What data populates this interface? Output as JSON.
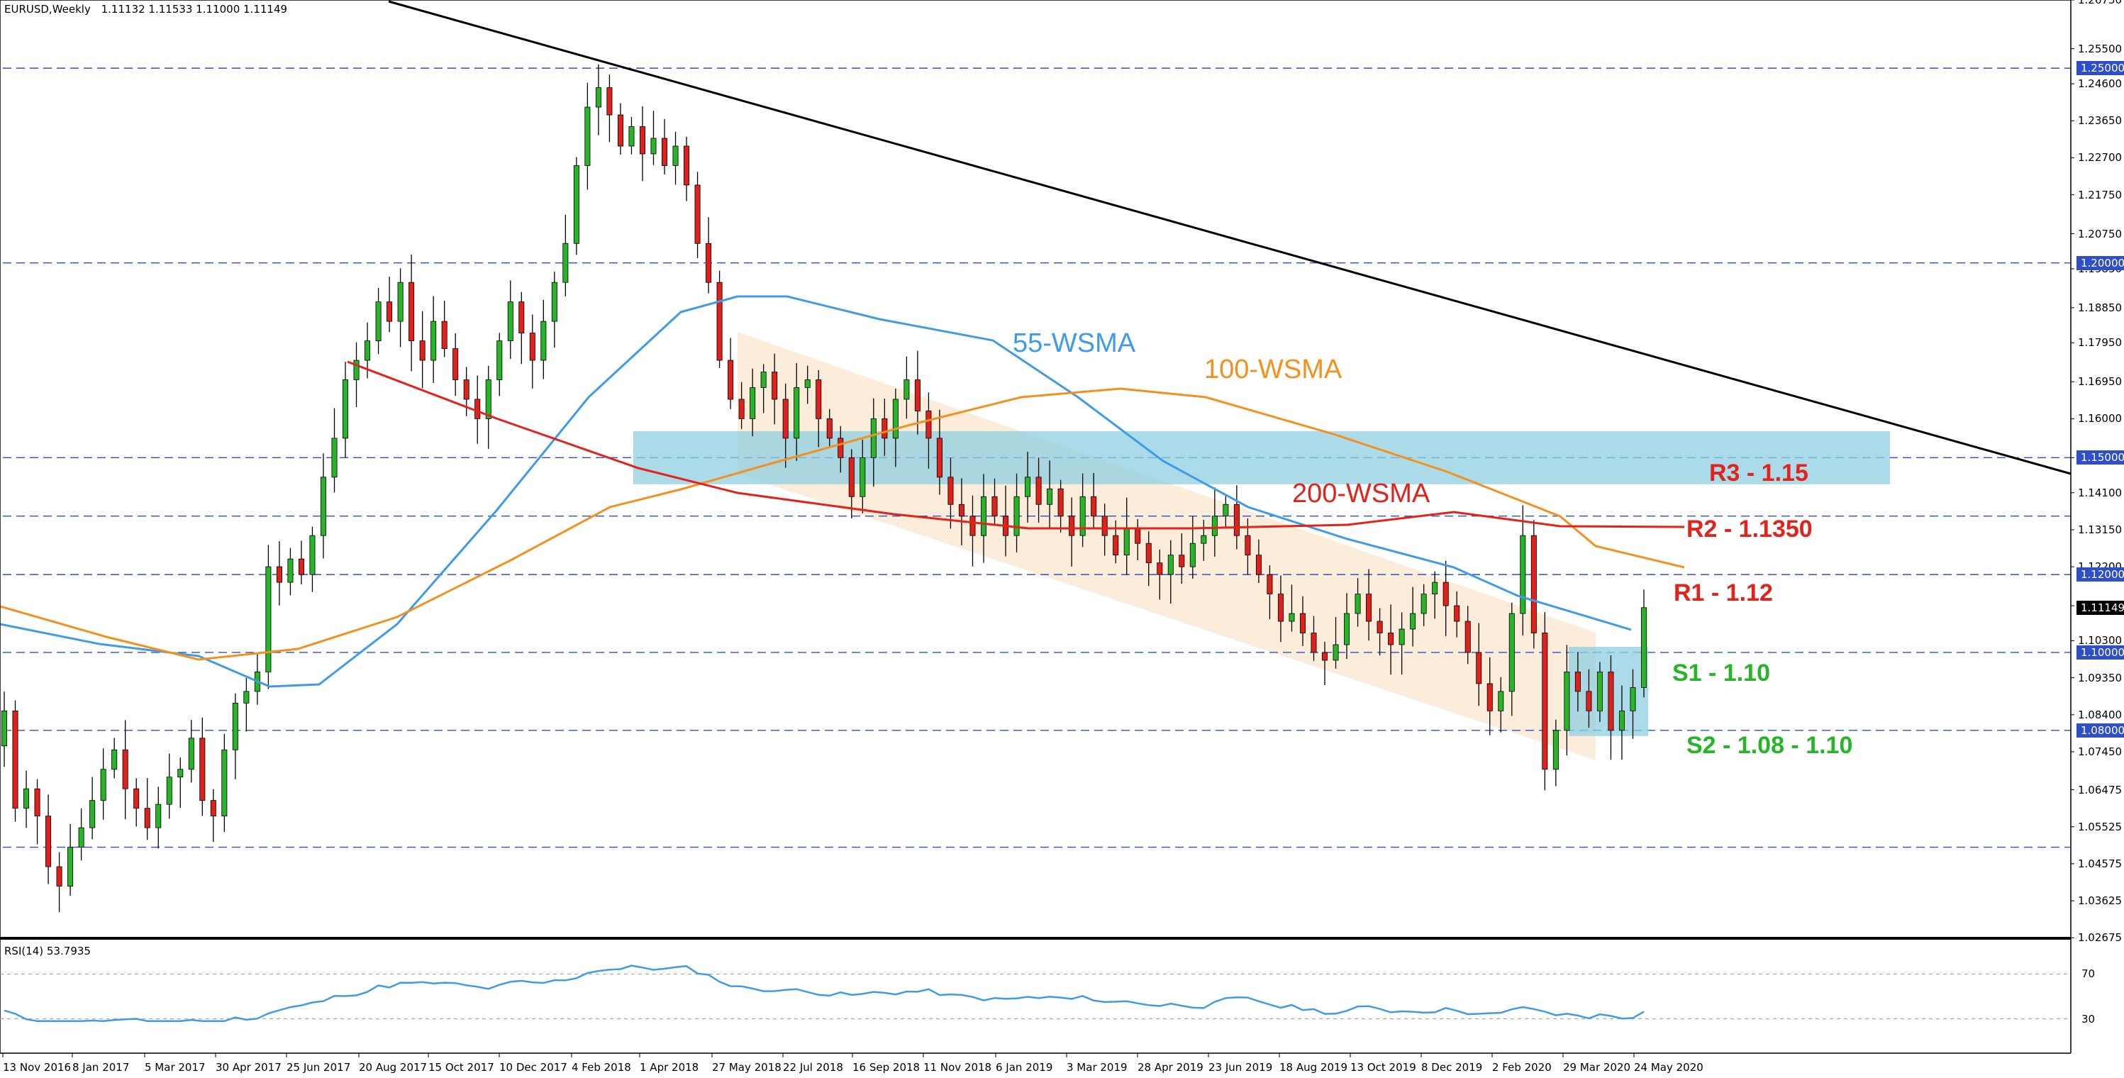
{
  "header": {
    "symbol": "EURUSD,Weekly",
    "ohlc": "1.11132 1.11533 1.11000 1.11149"
  },
  "rsi_header": "RSI(14) 53.7935",
  "colors": {
    "up": "#26b526",
    "down": "#e0201b",
    "sma55": "#3f9be8",
    "sma100": "#f39020",
    "sma200": "#e3221b",
    "trendline": "#000000",
    "zone": "#8fcfe0",
    "channel": "#fbe9d3",
    "hline": "#2f4fc9"
  },
  "x_ticks": [
    "13 Nov 2016",
    "8 Jan 2017",
    "5 Mar 2017",
    "30 Apr 2017",
    "25 Jun 2017",
    "20 Aug 2017",
    "15 Oct 2017",
    "10 Dec 2017",
    "4 Feb 2018",
    "1 Apr 2018",
    "27 May 2018",
    "22 Jul 2018",
    "16 Sep 2018",
    "11 Nov 2018",
    "6 Jan 2019",
    "3 Mar 2019",
    "28 Apr 2019",
    "23 Jun 2019",
    "18 Aug 2019",
    "13 Oct 2019",
    "8 Dec 2019",
    "2 Feb 2020",
    "29 Mar 2020",
    "24 May 2020"
  ],
  "y_ticks": [
    "1.26750",
    "1.25500",
    "1.24600",
    "1.23650",
    "1.22700",
    "1.21750",
    "1.20750",
    "1.19850",
    "1.18850",
    "1.17950",
    "1.16950",
    "1.16000",
    "1.15000",
    "1.14100",
    "1.13150",
    "1.12200",
    "1.11200",
    "1.10300",
    "1.09350",
    "1.08400",
    "1.07450",
    "1.06475",
    "1.05525",
    "1.04575",
    "1.03625",
    "1.02675"
  ],
  "price_badges": [
    {
      "text": "1.25000",
      "level": 1.25,
      "bg": "#2f4fc9",
      "fg": "#ffffff"
    },
    {
      "text": "1.20000",
      "level": 1.2,
      "bg": "#2f4fc9",
      "fg": "#ffffff"
    },
    {
      "text": "1.15000",
      "level": 1.15,
      "bg": "#2f4fc9",
      "fg": "#ffffff"
    },
    {
      "text": "1.12000",
      "level": 1.12,
      "bg": "#2f4fc9",
      "fg": "#ffffff"
    },
    {
      "text": "1.11149",
      "level": 1.11149,
      "bg": "#000000",
      "fg": "#ffffff"
    },
    {
      "text": "1.10000",
      "level": 1.1,
      "bg": "#2f4fc9",
      "fg": "#ffffff"
    },
    {
      "text": "1.08000",
      "level": 1.08,
      "bg": "#2f4fc9",
      "fg": "#ffffff"
    }
  ],
  "rsi_ticks": [
    "70",
    "30"
  ],
  "annotations": {
    "sma55": "55-WSMA",
    "sma100": "100-WSMA",
    "sma200": "200-WSMA",
    "r3": "R3 - 1.15",
    "r2": "R2 - 1.1350",
    "r1": "R1 - 1.12",
    "s1": "S1 - 1.10",
    "s2": "S2 - 1.08 - 1.10"
  },
  "chart_data": {
    "type": "candlestick",
    "title": "EURUSD,Weekly",
    "xlabel": "",
    "ylabel": "",
    "ylim": [
      1.0268,
      1.2675
    ],
    "grid": false,
    "horizontal_levels": [
      1.25,
      1.2,
      1.15,
      1.135,
      1.12,
      1.1,
      1.08,
      1.05
    ],
    "resistance_zone": [
      1.145,
      1.155
    ],
    "support_zone": [
      1.08,
      1.1
    ],
    "candles_close": [
      1.085,
      1.06,
      1.065,
      1.058,
      1.045,
      1.04,
      1.05,
      1.055,
      1.062,
      1.07,
      1.075,
      1.065,
      1.06,
      1.055,
      1.061,
      1.068,
      1.07,
      1.078,
      1.062,
      1.058,
      1.075,
      1.087,
      1.09,
      1.095,
      1.122,
      1.118,
      1.124,
      1.12,
      1.13,
      1.145,
      1.155,
      1.17,
      1.175,
      1.18,
      1.19,
      1.185,
      1.195,
      1.18,
      1.175,
      1.185,
      1.178,
      1.17,
      1.165,
      1.16,
      1.17,
      1.18,
      1.19,
      1.182,
      1.175,
      1.185,
      1.195,
      1.205,
      1.225,
      1.24,
      1.245,
      1.238,
      1.23,
      1.235,
      1.228,
      1.232,
      1.225,
      1.23,
      1.22,
      1.205,
      1.195,
      1.175,
      1.165,
      1.16,
      1.168,
      1.172,
      1.165,
      1.155,
      1.168,
      1.17,
      1.16,
      1.155,
      1.15,
      1.14,
      1.15,
      1.16,
      1.155,
      1.165,
      1.17,
      1.162,
      1.155,
      1.145,
      1.138,
      1.135,
      1.13,
      1.14,
      1.135,
      1.13,
      1.14,
      1.145,
      1.138,
      1.142,
      1.135,
      1.13,
      1.14,
      1.135,
      1.13,
      1.125,
      1.132,
      1.128,
      1.123,
      1.12,
      1.125,
      1.122,
      1.128,
      1.13,
      1.135,
      1.138,
      1.13,
      1.125,
      1.12,
      1.115,
      1.108,
      1.11,
      1.105,
      1.1,
      1.098,
      1.102,
      1.11,
      1.115,
      1.108,
      1.105,
      1.102,
      1.106,
      1.11,
      1.115,
      1.118,
      1.112,
      1.108,
      1.1,
      1.092,
      1.085,
      1.09,
      1.11,
      1.13,
      1.105,
      1.07,
      1.08,
      1.095,
      1.09,
      1.085,
      1.095,
      1.08,
      1.085,
      1.091,
      1.1115
    ]
  }
}
